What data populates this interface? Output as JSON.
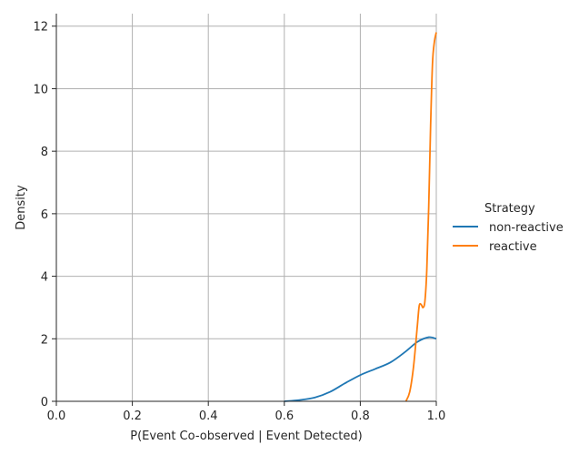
{
  "chart_data": {
    "type": "line",
    "title": "",
    "xlabel": "P(Event Co-observed | Event Detected)",
    "ylabel": "Density",
    "xlim": [
      0.0,
      1.0
    ],
    "ylim": [
      0,
      12.4
    ],
    "xticks": [
      "0.0",
      "0.2",
      "0.4",
      "0.6",
      "0.8",
      "1.0"
    ],
    "yticks": [
      "0",
      "2",
      "4",
      "6",
      "8",
      "10",
      "12"
    ],
    "grid": true,
    "legend": {
      "title": "Strategy",
      "placement": "right"
    },
    "series": [
      {
        "name": "non-reactive",
        "color": "#1f77b4",
        "x": [
          0.6,
          0.64,
          0.68,
          0.72,
          0.76,
          0.8,
          0.84,
          0.88,
          0.92,
          0.95,
          0.98,
          1.0
        ],
        "y": [
          0.0,
          0.04,
          0.12,
          0.3,
          0.58,
          0.84,
          1.04,
          1.25,
          1.6,
          1.9,
          2.05,
          2.0
        ]
      },
      {
        "name": "reactive",
        "color": "#ff7f0e",
        "x": [
          0.92,
          0.93,
          0.94,
          0.95,
          0.955,
          0.96,
          0.965,
          0.97,
          0.975,
          0.98,
          0.985,
          0.99,
          0.995,
          1.0
        ],
        "y": [
          0.0,
          0.3,
          1.1,
          2.4,
          3.05,
          3.1,
          3.0,
          3.2,
          4.2,
          6.2,
          8.8,
          10.8,
          11.5,
          11.8
        ]
      }
    ]
  }
}
